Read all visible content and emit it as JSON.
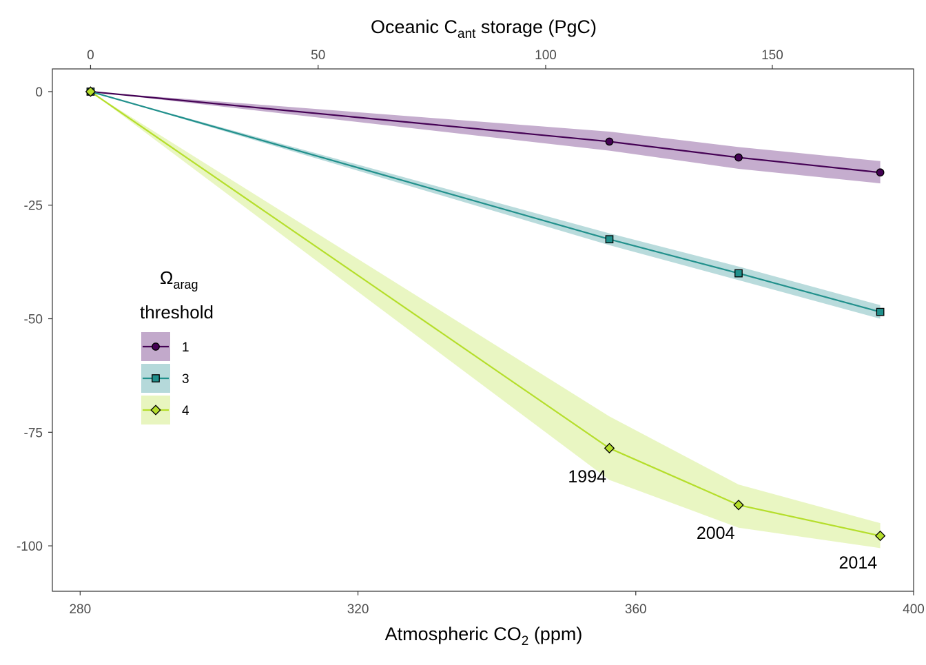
{
  "chart_data": {
    "type": "line",
    "x_axis_bottom": {
      "title_main": "Atmospheric CO",
      "title_sub": "2",
      "title_tail": " (ppm)",
      "lim": [
        276,
        400
      ],
      "ticks": [
        280,
        320,
        360,
        400
      ]
    },
    "x_axis_top": {
      "title_main": "Oceanic C",
      "title_sub": "ant",
      "title_tail": " storage (PgC)",
      "ticks": [
        0,
        50,
        100,
        150
      ],
      "storage_at_points": [
        0,
        114,
        142.5,
        174
      ]
    },
    "y_axis": {
      "lim": [
        -110,
        5
      ],
      "ticks": [
        0,
        -25,
        -50,
        -75,
        -100
      ],
      "tick_labels": [
        "0",
        "-25",
        "-50",
        "-75",
        "-100"
      ]
    },
    "x": [
      281.5,
      356.2,
      374.8,
      395.2
    ],
    "legend": {
      "title_symbol": "Ω",
      "title_sub": "arag",
      "title_word": "threshold",
      "position": "left-middle"
    },
    "series": [
      {
        "name": "1",
        "marker": "circle",
        "color": "#440154",
        "band_color": "#c2a9cb",
        "values": [
          0,
          -11,
          -14.5,
          -17.8
        ],
        "lower": [
          0,
          -13,
          -17,
          -20.2
        ],
        "upper": [
          0,
          -8.8,
          -12.2,
          -15.3
        ]
      },
      {
        "name": "3",
        "marker": "square",
        "color": "#21908c",
        "band_color": "#b5d9da",
        "values": [
          0,
          -32.5,
          -40,
          -48.5
        ],
        "lower": [
          0,
          -33.8,
          -41.5,
          -50
        ],
        "upper": [
          0,
          -31.2,
          -38.5,
          -47
        ]
      },
      {
        "name": "4",
        "marker": "diamond",
        "color": "#b5de2b",
        "band_color": "#e8f5bf",
        "values": [
          0,
          -78.5,
          -91,
          -97.8
        ],
        "lower": [
          0,
          -85.5,
          -96,
          -100.5
        ],
        "upper": [
          0,
          -71.5,
          -86.5,
          -95
        ]
      }
    ],
    "annotations": [
      {
        "text": "1994",
        "x": 353,
        "y": -86
      },
      {
        "text": "2004",
        "x": 371.5,
        "y": -98.5
      },
      {
        "text": "2014",
        "x": 392,
        "y": -105
      }
    ]
  }
}
